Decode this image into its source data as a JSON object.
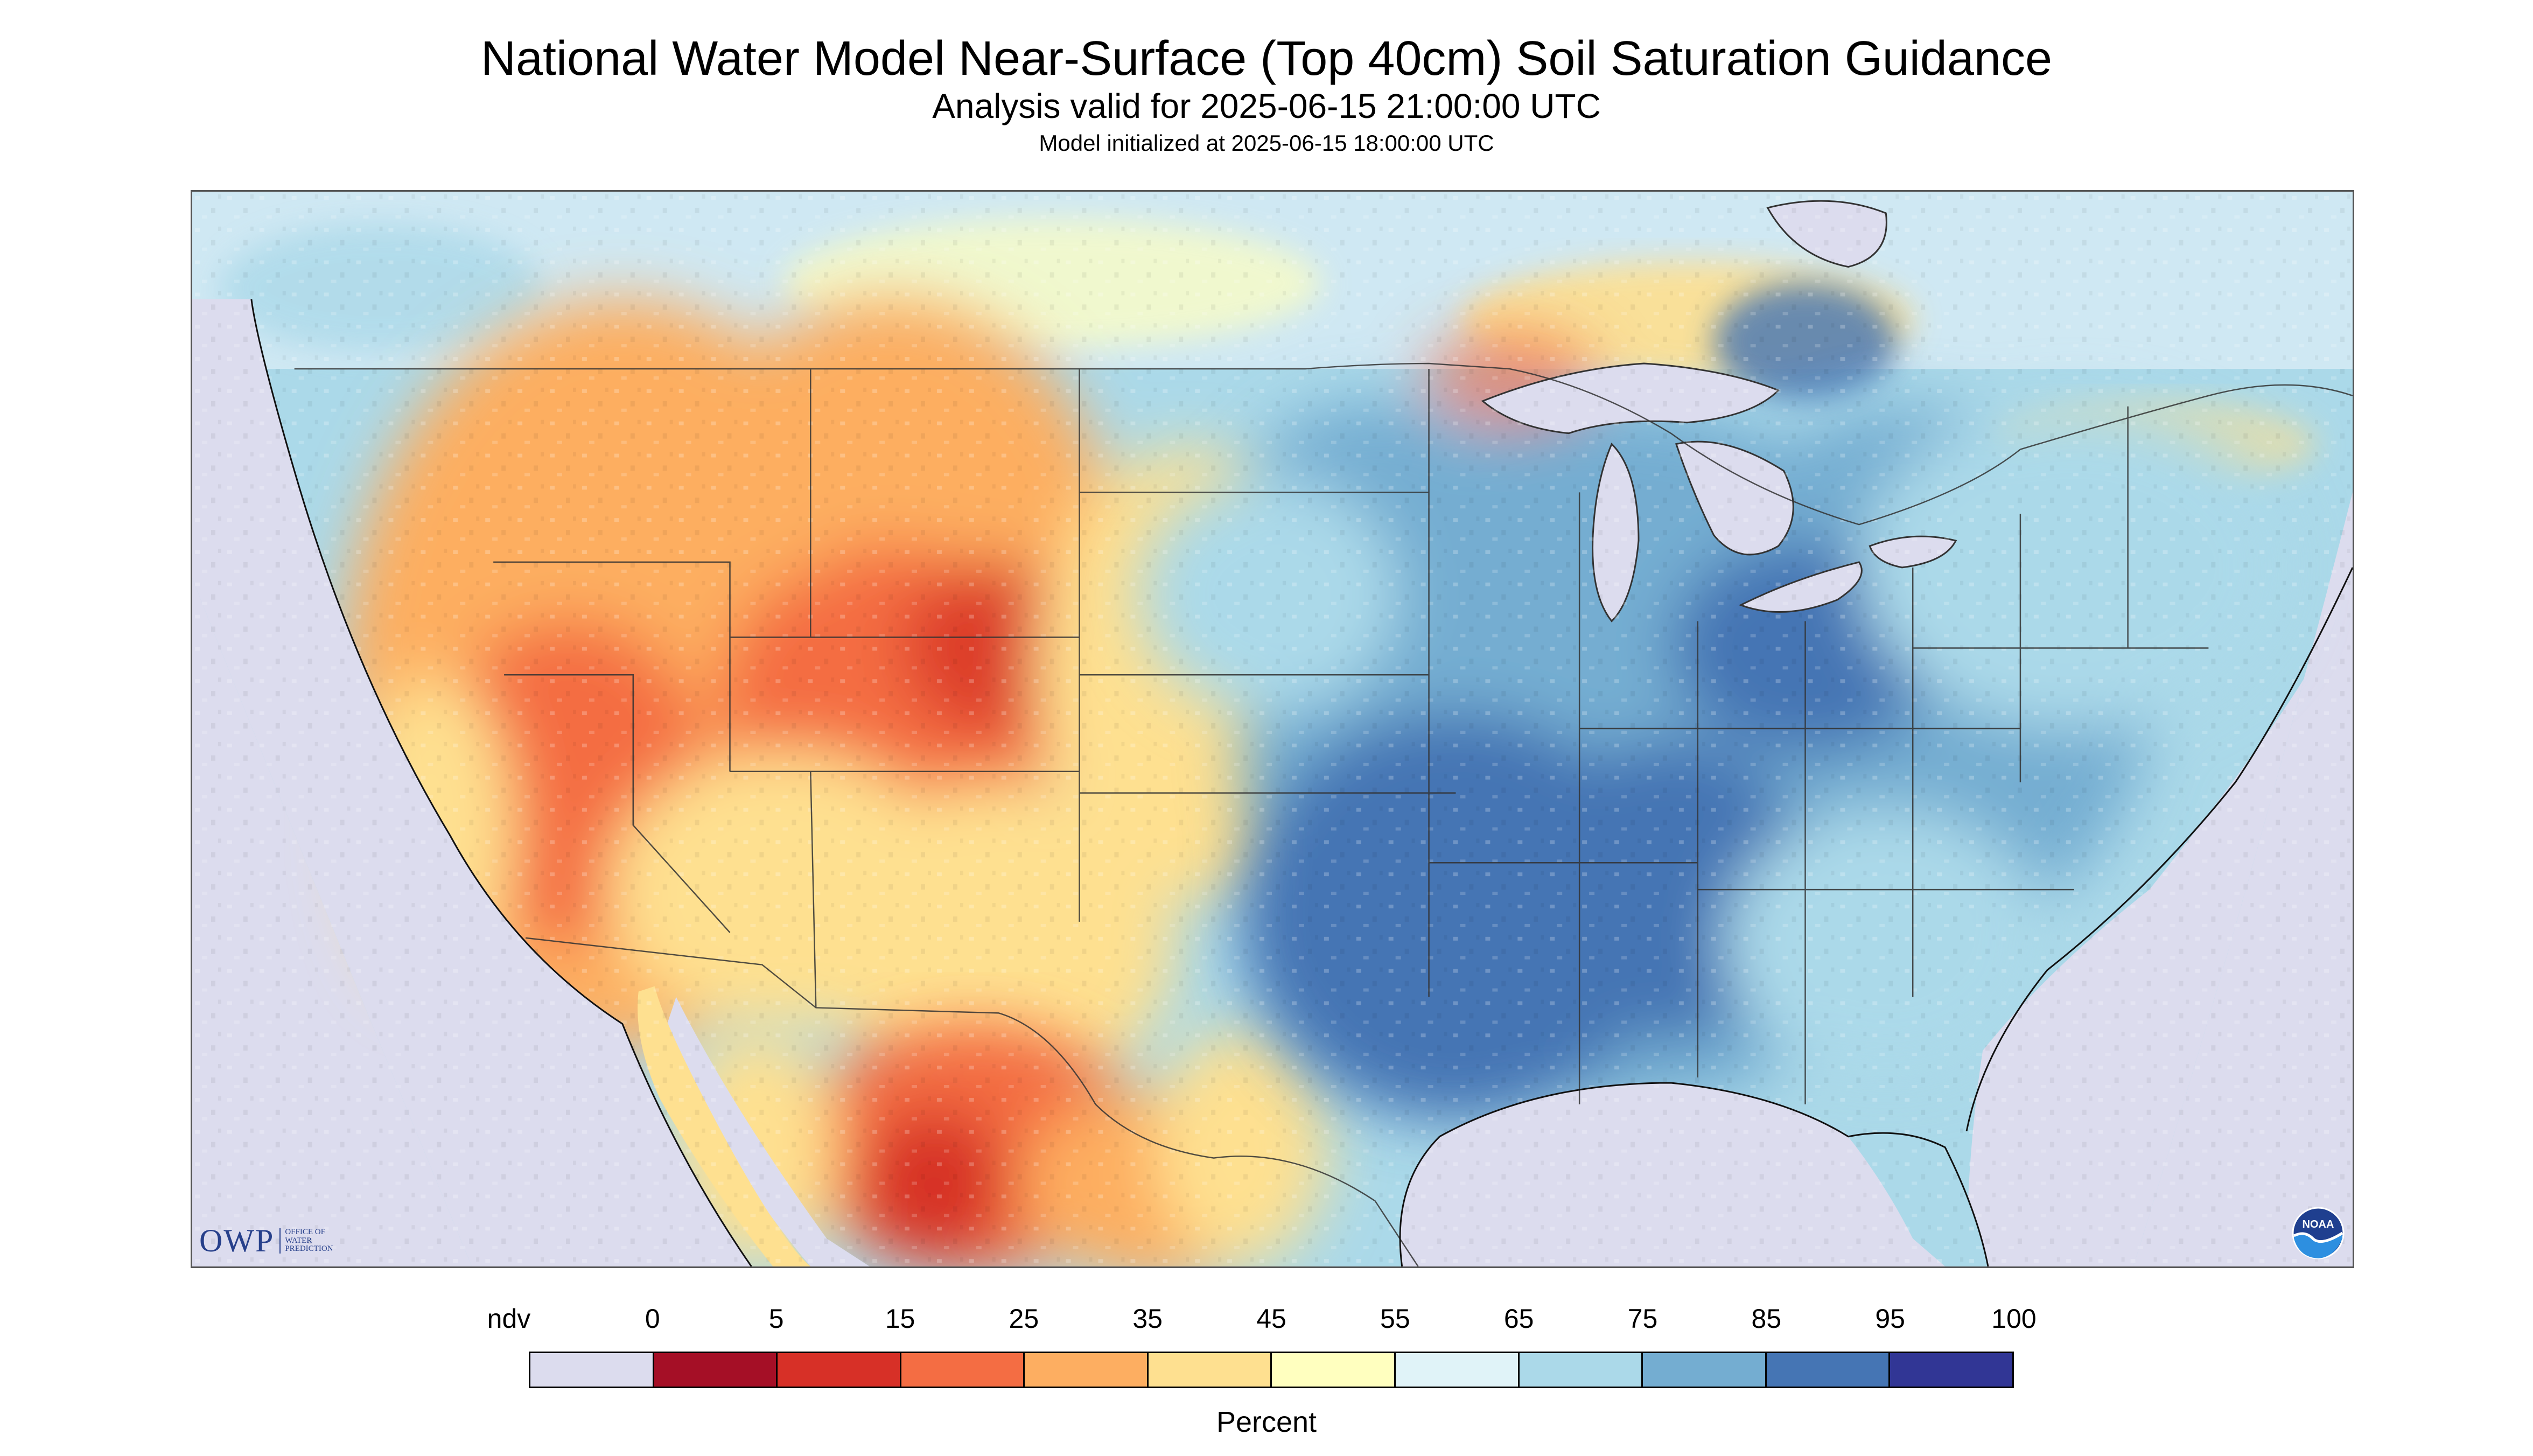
{
  "title": "National Water Model Near-Surface (Top 40cm) Soil Saturation Guidance",
  "subtitle": "Analysis valid for 2025-06-15 21:00:00 UTC",
  "init_text": "Model initialized at 2025-06-15 18:00:00 UTC",
  "legend": {
    "labels": [
      "ndv",
      "0",
      "5",
      "15",
      "25",
      "35",
      "45",
      "55",
      "65",
      "75",
      "85",
      "95",
      "100"
    ],
    "colors": [
      "#dcdcee",
      "#a50f26",
      "#d73027",
      "#f46d43",
      "#fdae61",
      "#fee090",
      "#ffffbf",
      "#e0f3f8",
      "#abd9e9",
      "#74add1",
      "#4575b4",
      "#313695"
    ],
    "unit": "Percent"
  },
  "logos": {
    "owp_text": "OWP",
    "owp_sub": "OFFICE OF\nWATER\nPREDICTION",
    "noaa_text": "NOAA"
  },
  "map": {
    "nodata_color": "#dcdcee",
    "water_color": "#dcdcee",
    "regions": [
      {
        "name": "southwest-dry",
        "color": "#f46d43"
      },
      {
        "name": "mountain-west",
        "color": "#fdae61"
      },
      {
        "name": "great-plains",
        "color": "#fee090"
      },
      {
        "name": "central-wet",
        "color": "#74add1"
      },
      {
        "name": "southeast-wet",
        "color": "#4575b4"
      },
      {
        "name": "canada",
        "color": "#abd9e9"
      }
    ]
  }
}
